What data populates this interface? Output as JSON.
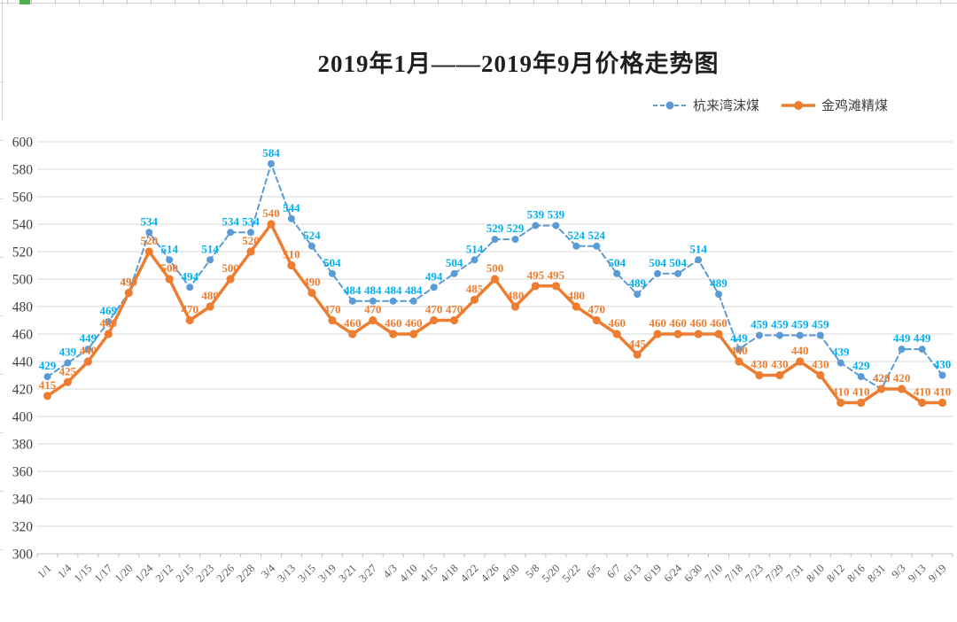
{
  "chart_data": {
    "type": "line",
    "title": "2019年1月——2019年9月价格走势图",
    "legend_position": "top-right",
    "grid": "horizontal",
    "ylim": [
      300,
      600
    ],
    "ytick_step": 20,
    "data_labels": true,
    "categories": [
      "1/1",
      "1/4",
      "1/15",
      "1/17",
      "1/20",
      "1/24",
      "2/12",
      "2/15",
      "2/23",
      "2/26",
      "2/28",
      "3/4",
      "3/13",
      "3/15",
      "3/19",
      "3/21",
      "3/27",
      "4/3",
      "4/10",
      "4/15",
      "4/18",
      "4/22",
      "4/26",
      "4/30",
      "5/8",
      "5/20",
      "5/22",
      "6/5",
      "6/7",
      "6/13",
      "6/19",
      "6/24",
      "6/30",
      "7/10",
      "7/18",
      "7/23",
      "7/29",
      "7/31",
      "8/10",
      "8/12",
      "8/16",
      "8/31",
      "9/3",
      "9/13",
      "9/19"
    ],
    "series": [
      {
        "name": "杭来湾沫煤",
        "color": "#5B9BD5",
        "label_color": "#00B0F0",
        "style": "dashed",
        "marker": "circle",
        "values": [
          429,
          439,
          449,
          469,
          490,
          534,
          514,
          494,
          514,
          534,
          534,
          584,
          544,
          524,
          504,
          484,
          484,
          484,
          484,
          494,
          504,
          514,
          529,
          529,
          539,
          539,
          524,
          524,
          504,
          489,
          504,
          504,
          514,
          489,
          449,
          459,
          459,
          459,
          459,
          439,
          429,
          420,
          449,
          449,
          430
        ]
      },
      {
        "name": "金鸡滩精煤",
        "color": "#ED7D31",
        "label_color": "#ED7D31",
        "style": "solid",
        "marker": "circle",
        "values": [
          415,
          425,
          440,
          460,
          490,
          520,
          500,
          470,
          480,
          500,
          520,
          540,
          510,
          490,
          470,
          460,
          470,
          460,
          460,
          470,
          470,
          485,
          500,
          480,
          495,
          495,
          480,
          470,
          460,
          445,
          460,
          460,
          460,
          460,
          440,
          430,
          430,
          440,
          430,
          410,
          410,
          420,
          420,
          410,
          410
        ]
      }
    ]
  }
}
